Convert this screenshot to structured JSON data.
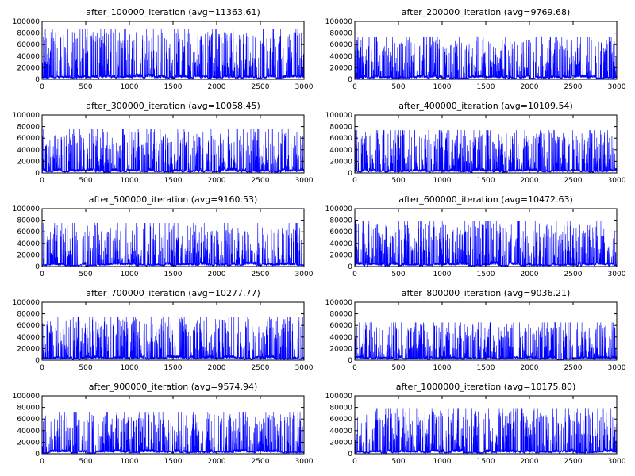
{
  "figure": {
    "background": "#ffffff",
    "line_color": "#0000ff"
  },
  "chart_data": [
    {
      "type": "line",
      "title": "after_100000_iteration (avg=11363.61)",
      "xlim": [
        0,
        3000
      ],
      "ylim": [
        0,
        100000
      ],
      "xticks": [
        "0",
        "500",
        "1000",
        "1500",
        "2000",
        "2500",
        "3000"
      ],
      "yticks": [
        "0",
        "20000",
        "40000",
        "60000",
        "80000",
        "100000"
      ],
      "grid": false,
      "n_points": 3000,
      "avg": 11363.61,
      "seed": 11
    },
    {
      "type": "line",
      "title": "after_200000_iteration (avg=9769.68)",
      "xlim": [
        0,
        3000
      ],
      "ylim": [
        0,
        100000
      ],
      "xticks": [
        "0",
        "500",
        "1000",
        "1500",
        "2000",
        "2500",
        "3000"
      ],
      "yticks": [
        "0",
        "20000",
        "40000",
        "60000",
        "80000",
        "100000"
      ],
      "grid": false,
      "n_points": 3000,
      "avg": 9769.68,
      "seed": 23
    },
    {
      "type": "line",
      "title": "after_300000_iteration (avg=10058.45)",
      "xlim": [
        0,
        3000
      ],
      "ylim": [
        0,
        100000
      ],
      "xticks": [
        "0",
        "500",
        "1000",
        "1500",
        "2000",
        "2500",
        "3000"
      ],
      "yticks": [
        "0",
        "20000",
        "40000",
        "60000",
        "80000",
        "100000"
      ],
      "grid": false,
      "n_points": 3000,
      "avg": 10058.45,
      "seed": 37
    },
    {
      "type": "line",
      "title": "after_400000_iteration (avg=10109.54)",
      "xlim": [
        0,
        3000
      ],
      "ylim": [
        0,
        100000
      ],
      "xticks": [
        "0",
        "500",
        "1000",
        "1500",
        "2000",
        "2500",
        "3000"
      ],
      "yticks": [
        "0",
        "20000",
        "40000",
        "60000",
        "80000",
        "100000"
      ],
      "grid": false,
      "n_points": 3000,
      "avg": 10109.54,
      "seed": 41
    },
    {
      "type": "line",
      "title": "after_500000_iteration (avg=9160.53)",
      "xlim": [
        0,
        3000
      ],
      "ylim": [
        0,
        100000
      ],
      "xticks": [
        "0",
        "500",
        "1000",
        "1500",
        "2000",
        "2500",
        "3000"
      ],
      "yticks": [
        "0",
        "20000",
        "40000",
        "60000",
        "80000",
        "100000"
      ],
      "grid": false,
      "n_points": 3000,
      "avg": 9160.53,
      "seed": 53
    },
    {
      "type": "line",
      "title": "after_600000_iteration (avg=10472.63)",
      "xlim": [
        0,
        3000
      ],
      "ylim": [
        0,
        100000
      ],
      "xticks": [
        "0",
        "500",
        "1000",
        "1500",
        "2000",
        "2500",
        "3000"
      ],
      "yticks": [
        "0",
        "20000",
        "40000",
        "60000",
        "80000",
        "100000"
      ],
      "grid": false,
      "n_points": 3000,
      "avg": 10472.63,
      "seed": 67
    },
    {
      "type": "line",
      "title": "after_700000_iteration (avg=10277.77)",
      "xlim": [
        0,
        3000
      ],
      "ylim": [
        0,
        100000
      ],
      "xticks": [
        "0",
        "500",
        "1000",
        "1500",
        "2000",
        "2500",
        "3000"
      ],
      "yticks": [
        "0",
        "20000",
        "40000",
        "60000",
        "80000",
        "100000"
      ],
      "grid": false,
      "n_points": 3000,
      "avg": 10277.77,
      "seed": 71
    },
    {
      "type": "line",
      "title": "after_800000_iteration (avg=9036.21)",
      "xlim": [
        0,
        3000
      ],
      "ylim": [
        0,
        100000
      ],
      "xticks": [
        "0",
        "500",
        "1000",
        "1500",
        "2000",
        "2500",
        "3000"
      ],
      "yticks": [
        "0",
        "20000",
        "40000",
        "60000",
        "80000",
        "100000"
      ],
      "grid": false,
      "n_points": 3000,
      "avg": 9036.21,
      "seed": 83
    },
    {
      "type": "line",
      "title": "after_900000_iteration (avg=9574.94)",
      "xlim": [
        0,
        3000
      ],
      "ylim": [
        0,
        100000
      ],
      "xticks": [
        "0",
        "500",
        "1000",
        "1500",
        "2000",
        "2500",
        "3000"
      ],
      "yticks": [
        "0",
        "20000",
        "40000",
        "60000",
        "80000",
        "100000"
      ],
      "grid": false,
      "n_points": 3000,
      "avg": 9574.94,
      "seed": 97
    },
    {
      "type": "line",
      "title": "after_1000000_iteration (avg=10175.80)",
      "xlim": [
        0,
        3000
      ],
      "ylim": [
        0,
        100000
      ],
      "xticks": [
        "0",
        "500",
        "1000",
        "1500",
        "2000",
        "2500",
        "3000"
      ],
      "yticks": [
        "0",
        "20000",
        "40000",
        "60000",
        "80000",
        "100000"
      ],
      "grid": false,
      "n_points": 3000,
      "avg": 10175.8,
      "seed": 101
    }
  ]
}
